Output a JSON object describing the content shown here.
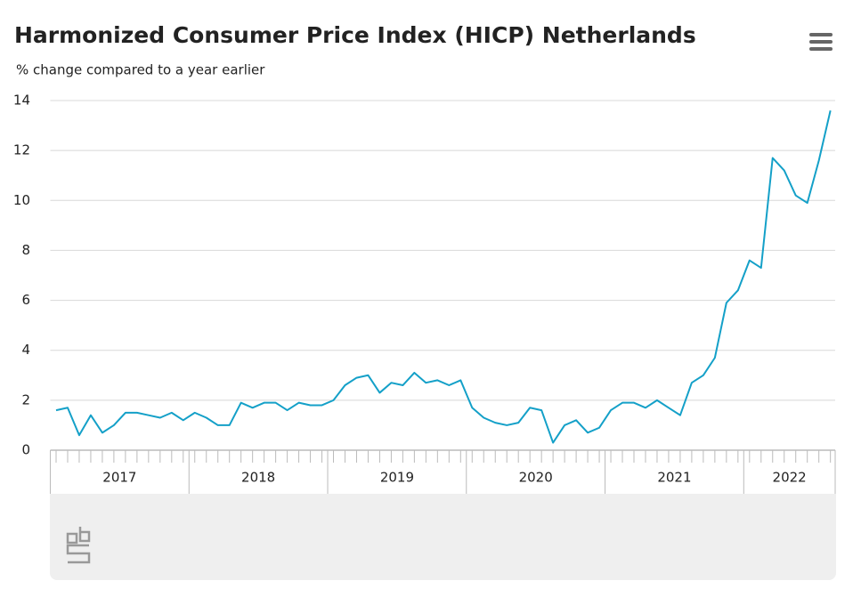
{
  "chart_data": {
    "type": "line",
    "title": "Harmonized Consumer Price Index (HICP) Netherlands",
    "subtitle": "% change compared to a year earlier",
    "categories": [
      "2017",
      "2017",
      "2017",
      "2017",
      "2017",
      "2017",
      "2017",
      "2017",
      "2017",
      "2017",
      "2017",
      "2017",
      "2018",
      "2018",
      "2018",
      "2018",
      "2018",
      "2018",
      "2018",
      "2018",
      "2018",
      "2018",
      "2018",
      "2018",
      "2019",
      "2019",
      "2019",
      "2019",
      "2019",
      "2019",
      "2019",
      "2019",
      "2019",
      "2019",
      "2019",
      "2019",
      "2020",
      "2020",
      "2020",
      "2020",
      "2020",
      "2020",
      "2020",
      "2020",
      "2020",
      "2020",
      "2020",
      "2020",
      "2021",
      "2021",
      "2021",
      "2021",
      "2021",
      "2021",
      "2021",
      "2021",
      "2021",
      "2021",
      "2021",
      "2021",
      "2022",
      "2022",
      "2022",
      "2022",
      "2022",
      "2022",
      "2022",
      "2022"
    ],
    "series": [
      {
        "name": "HICP",
        "color": "#14a0c8",
        "values": [
          1.6,
          1.7,
          0.6,
          1.4,
          0.7,
          1.0,
          1.5,
          1.5,
          1.4,
          1.3,
          1.5,
          1.2,
          1.5,
          1.3,
          1.0,
          1.0,
          1.9,
          1.7,
          1.9,
          1.9,
          1.6,
          1.9,
          1.8,
          1.8,
          2.0,
          2.6,
          2.9,
          3.0,
          2.3,
          2.7,
          2.6,
          3.1,
          2.7,
          2.8,
          2.6,
          2.8,
          1.7,
          1.3,
          1.1,
          1.0,
          1.1,
          1.7,
          1.6,
          0.3,
          1.0,
          1.2,
          0.7,
          0.9,
          1.6,
          1.9,
          1.9,
          1.7,
          2.0,
          1.7,
          1.4,
          2.7,
          3.0,
          3.7,
          5.9,
          6.4,
          7.6,
          7.3,
          11.7,
          11.2,
          10.2,
          9.9,
          11.6,
          13.6
        ]
      }
    ],
    "ylim": [
      0,
      14
    ],
    "yticks": [
      0,
      2,
      4,
      6,
      8,
      10,
      12,
      14
    ],
    "grid": true
  }
}
